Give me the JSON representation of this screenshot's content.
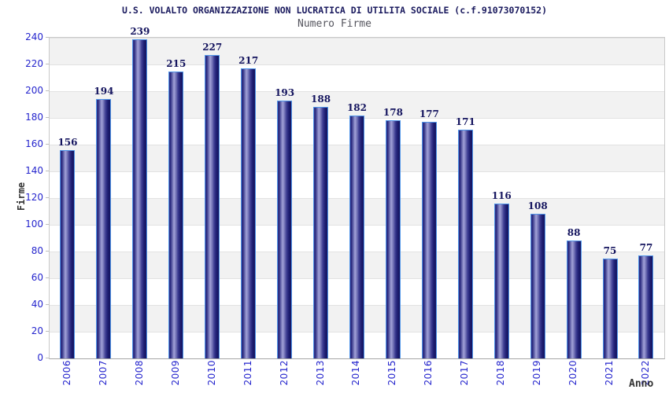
{
  "chart_data": {
    "type": "bar",
    "title": "U.S. VOLALTO ORGANIZZAZIONE NON LUCRATICA DI UTILITA SOCIALE (c.f.91073070152)",
    "subtitle": "Numero Firme",
    "xlabel": "Anno",
    "ylabel": "Firme",
    "categories": [
      "2006",
      "2007",
      "2008",
      "2009",
      "2010",
      "2011",
      "2012",
      "2013",
      "2014",
      "2015",
      "2016",
      "2017",
      "2018",
      "2019",
      "2020",
      "2021",
      "2022"
    ],
    "values": [
      156,
      194,
      239,
      215,
      227,
      217,
      193,
      188,
      182,
      178,
      177,
      171,
      116,
      108,
      88,
      75,
      77
    ],
    "ylim": [
      0,
      240
    ],
    "y_ticks": [
      0,
      20,
      40,
      60,
      80,
      100,
      120,
      140,
      160,
      180,
      200,
      220,
      240
    ],
    "grid": "horizontal",
    "legend": "none",
    "value_labels_shown": true
  },
  "colors": {
    "tick_label_blue": "#2525cd",
    "value_label_navy": "#14145e",
    "title_navy": "#1a1a5e",
    "subtitle_gray": "#55555e",
    "axis_title_gray": "#333333",
    "bar_border_lightblue": "#4f94e8",
    "bar_dark": "#1b1b6c",
    "bar_light": "#a2a2d8",
    "band_gray": "#f2f2f2",
    "gridline_gray": "#e2e2e2"
  }
}
